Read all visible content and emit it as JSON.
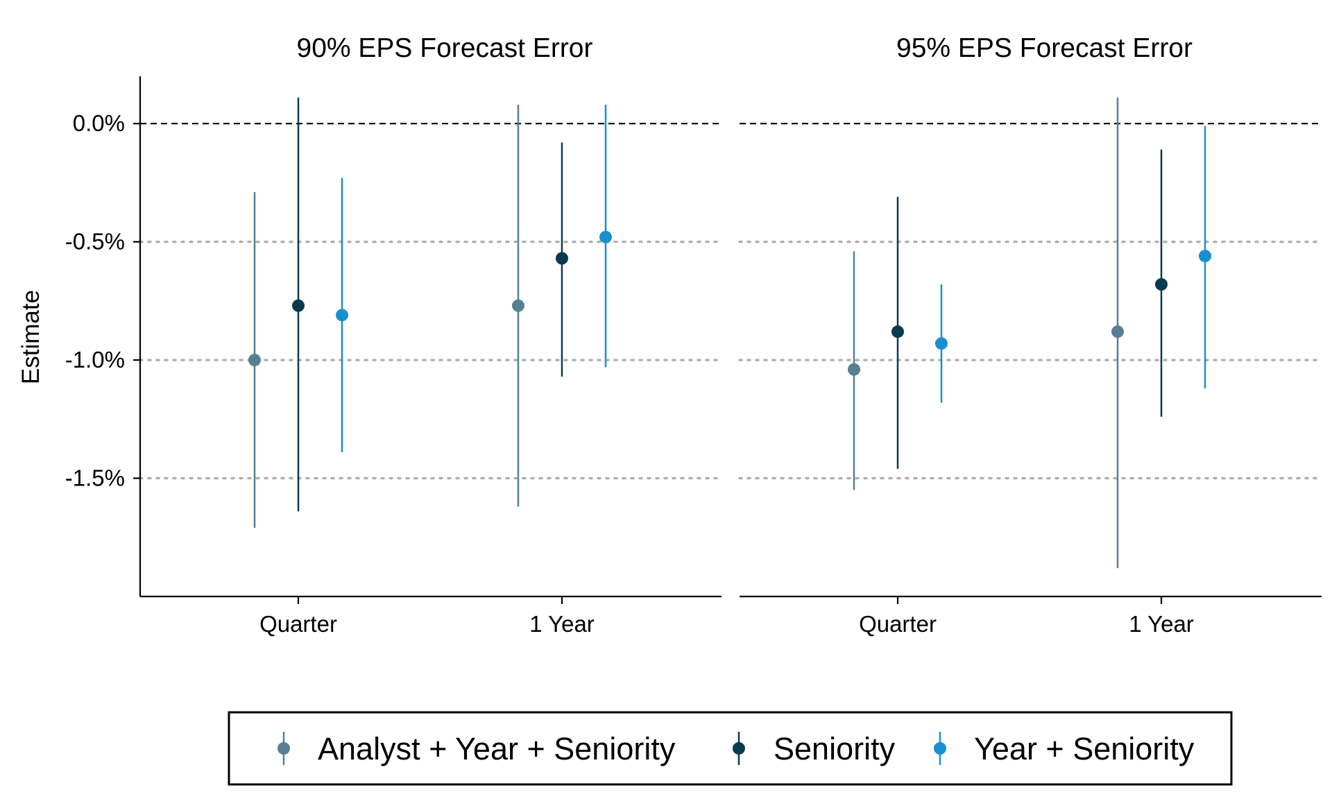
{
  "chart_data": {
    "type": "scatter",
    "ylabel": "Estimate",
    "ylim": [
      -2.0,
      0.2
    ],
    "yticks": [
      {
        "value": 0.0,
        "label": "0.0%"
      },
      {
        "value": -0.5,
        "label": "-0.5%"
      },
      {
        "value": -1.0,
        "label": "-1.0%"
      },
      {
        "value": -1.5,
        "label": "-1.5%"
      }
    ],
    "categories": [
      "Quarter",
      "1 Year"
    ],
    "reference_line": 0.0,
    "grid": "horizontal dotted",
    "legend_position": "bottom",
    "series": [
      {
        "name": "Analyst + Year + Seniority",
        "color": "#577f92"
      },
      {
        "name": "Seniority",
        "color": "#0b3a4f"
      },
      {
        "name": "Year + Seniority",
        "color": "#1a8fd0"
      }
    ],
    "panels": [
      {
        "title": "90% EPS Forecast Error",
        "points": [
          [
            {
              "estimate": -1.0,
              "low": -1.71,
              "high": -0.29
            },
            {
              "estimate": -0.77,
              "low": -1.64,
              "high": 0.11
            },
            {
              "estimate": -0.81,
              "low": -1.39,
              "high": -0.23
            }
          ],
          [
            {
              "estimate": -0.77,
              "low": -1.62,
              "high": 0.08
            },
            {
              "estimate": -0.57,
              "low": -1.07,
              "high": -0.08
            },
            {
              "estimate": -0.48,
              "low": -1.03,
              "high": 0.08
            }
          ]
        ]
      },
      {
        "title": "95% EPS Forecast Error",
        "points": [
          [
            {
              "estimate": -1.04,
              "low": -1.55,
              "high": -0.54
            },
            {
              "estimate": -0.88,
              "low": -1.46,
              "high": -0.31
            },
            {
              "estimate": -0.93,
              "low": -1.18,
              "high": -0.68
            }
          ],
          [
            {
              "estimate": -0.88,
              "low": -1.88,
              "high": 0.11
            },
            {
              "estimate": -0.68,
              "low": -1.24,
              "high": -0.11
            },
            {
              "estimate": -0.56,
              "low": -1.12,
              "high": -0.01
            }
          ]
        ]
      }
    ]
  }
}
